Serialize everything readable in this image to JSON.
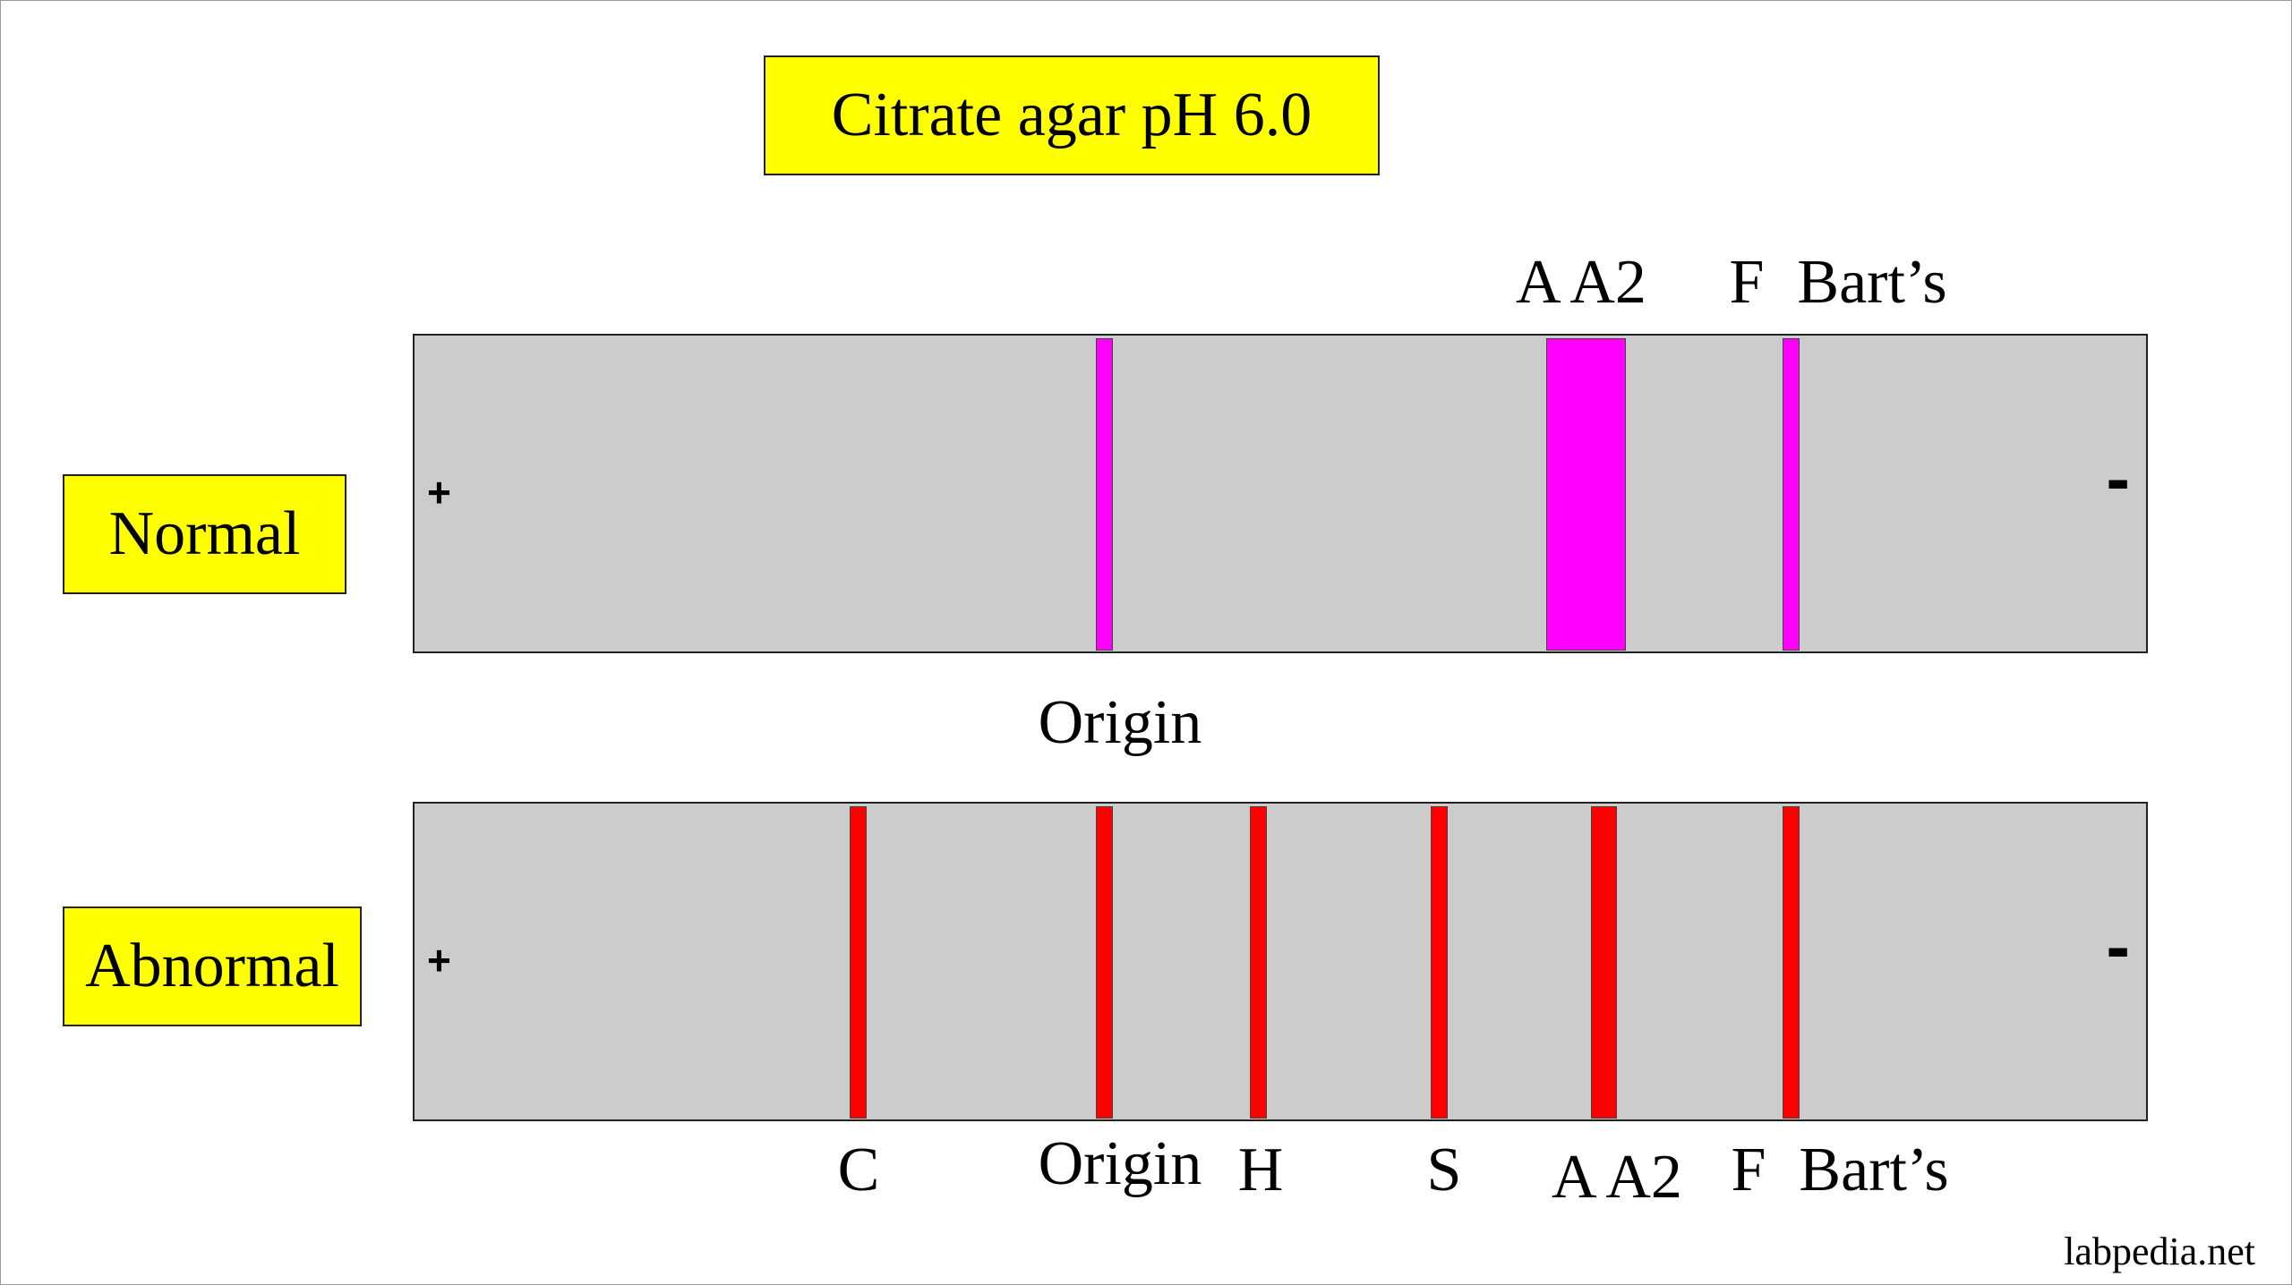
{
  "title": "Citrate agar pH 6.0",
  "colors": {
    "label_box": "#ffff00",
    "strip": "#cccccc",
    "normal_band": "#ff00ff",
    "abnormal_band": "#ff0000"
  },
  "electrodes": {
    "anode": "+",
    "cathode": "-"
  },
  "normal": {
    "label": "Normal",
    "bands": [
      "Origin",
      "A",
      "A2",
      "F",
      "Bart’s"
    ],
    "labels": {
      "a_a2": "A A2",
      "f": "F",
      "barts": "Bart’s",
      "origin": "Origin"
    }
  },
  "abnormal": {
    "label": "Abnormal",
    "bands": [
      "C",
      "Origin",
      "H",
      "S",
      "A",
      "A2",
      "F",
      "Bart’s"
    ],
    "labels": {
      "c": "C",
      "origin": "Origin",
      "h": "H",
      "s": "S",
      "a_a2": "A A2",
      "f": "F",
      "barts": "Bart’s"
    }
  },
  "credit": "labpedia.net"
}
